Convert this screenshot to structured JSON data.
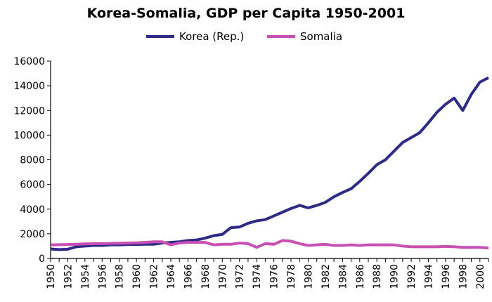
{
  "chart_data": {
    "type": "line",
    "title": "Korea-Somalia, GDP per Capita 1950-2001",
    "xlabel": "",
    "ylabel": "",
    "xlim": [
      1950,
      2001
    ],
    "ylim": [
      0,
      16000
    ],
    "yticks": [
      0,
      2000,
      4000,
      6000,
      8000,
      10000,
      12000,
      14000,
      16000
    ],
    "xticks": [
      1950,
      1952,
      1954,
      1956,
      1958,
      1960,
      1962,
      1964,
      1966,
      1968,
      1970,
      1972,
      1974,
      1976,
      1978,
      1980,
      1982,
      1984,
      1986,
      1988,
      1990,
      1992,
      1994,
      1996,
      1998,
      2000
    ],
    "grid": false,
    "legend_position": "top",
    "x": [
      1950,
      1951,
      1952,
      1953,
      1954,
      1955,
      1956,
      1957,
      1958,
      1959,
      1960,
      1961,
      1962,
      1963,
      1964,
      1965,
      1966,
      1967,
      1968,
      1969,
      1970,
      1971,
      1972,
      1973,
      1974,
      1975,
      1976,
      1977,
      1978,
      1979,
      1980,
      1981,
      1982,
      1983,
      1984,
      1985,
      1986,
      1987,
      1988,
      1989,
      1990,
      1991,
      1992,
      1993,
      1994,
      1995,
      1996,
      1997,
      1998,
      1999,
      2000,
      2001
    ],
    "series": [
      {
        "name": "Korea (Rep.)",
        "color": "#2e2a87",
        "values": [
          770,
          720,
          750,
          950,
          1000,
          1050,
          1050,
          1100,
          1100,
          1130,
          1130,
          1150,
          1150,
          1250,
          1300,
          1350,
          1450,
          1500,
          1650,
          1850,
          1950,
          2500,
          2550,
          2850,
          3050,
          3150,
          3450,
          3750,
          4050,
          4300,
          4100,
          4300,
          4550,
          5000,
          5350,
          5650,
          6250,
          6900,
          7600,
          8000,
          8700,
          9400,
          9800,
          10200,
          11000,
          11850,
          12500,
          13000,
          12000,
          13300,
          14300,
          14650
        ]
      },
      {
        "name": "Somalia",
        "color": "#c84fb4",
        "values": [
          1100,
          1120,
          1130,
          1150,
          1180,
          1200,
          1200,
          1220,
          1230,
          1250,
          1270,
          1300,
          1350,
          1350,
          1100,
          1250,
          1300,
          1300,
          1300,
          1100,
          1150,
          1150,
          1250,
          1200,
          900,
          1200,
          1150,
          1450,
          1400,
          1200,
          1050,
          1100,
          1150,
          1050,
          1050,
          1100,
          1050,
          1100,
          1100,
          1100,
          1100,
          1000,
          950,
          950,
          950,
          950,
          980,
          950,
          900,
          900,
          900,
          850
        ]
      }
    ]
  }
}
